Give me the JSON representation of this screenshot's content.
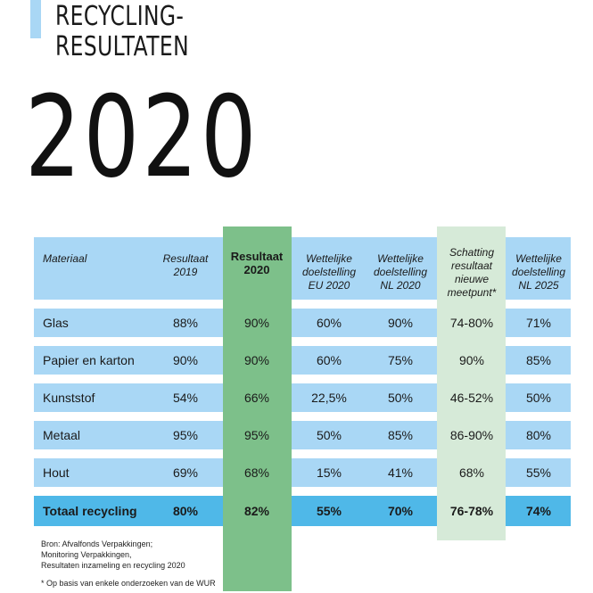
{
  "header": {
    "title_line1": "RECYCLING-",
    "title_line2": "RESULTATEN",
    "year": "2020"
  },
  "colors": {
    "light_blue": "#a9d7f5",
    "total_blue": "#4fb8e8",
    "green_highlight": "#7dc08a",
    "pale_green": "#d6ead8"
  },
  "table": {
    "headers": {
      "materiaal": "Materiaal",
      "res2019": "Resultaat 2019",
      "res2020": "Resultaat 2020",
      "eu2020": "Wettelijke doelstelling EU 2020",
      "nl2020": "Wettelijke doelstelling NL 2020",
      "schatting": "Schatting resultaat nieuwe meetpunt*",
      "nl2025": "Wettelijke doelstelling NL 2025"
    },
    "rows": [
      {
        "material": "Glas",
        "res2019": "88%",
        "res2020": "90%",
        "eu2020": "60%",
        "nl2020": "90%",
        "schatting": "74-80%",
        "nl2025": "71%"
      },
      {
        "material": "Papier en karton",
        "res2019": "90%",
        "res2020": "90%",
        "eu2020": "60%",
        "nl2020": "75%",
        "schatting": "90%",
        "nl2025": "85%"
      },
      {
        "material": "Kunststof",
        "res2019": "54%",
        "res2020": "66%",
        "eu2020": "22,5%",
        "nl2020": "50%",
        "schatting": "46-52%",
        "nl2025": "50%"
      },
      {
        "material": "Metaal",
        "res2019": "95%",
        "res2020": "95%",
        "eu2020": "50%",
        "nl2020": "85%",
        "schatting": "86-90%",
        "nl2025": "80%"
      },
      {
        "material": "Hout",
        "res2019": "69%",
        "res2020": "68%",
        "eu2020": "15%",
        "nl2020": "41%",
        "schatting": "68%",
        "nl2025": "55%"
      }
    ],
    "total": {
      "material": "Totaal recycling",
      "res2019": "80%",
      "res2020": "82%",
      "eu2020": "55%",
      "nl2020": "70%",
      "schatting": "76-78%",
      "nl2025": "74%"
    }
  },
  "source": {
    "line1": "Bron: Afvalfonds Verpakkingen;",
    "line2": "Monitoring Verpakkingen,",
    "line3": "Resultaten inzameling en recycling 2020"
  },
  "footnote": "* Op basis van enkele onderzoeken van de WUR"
}
